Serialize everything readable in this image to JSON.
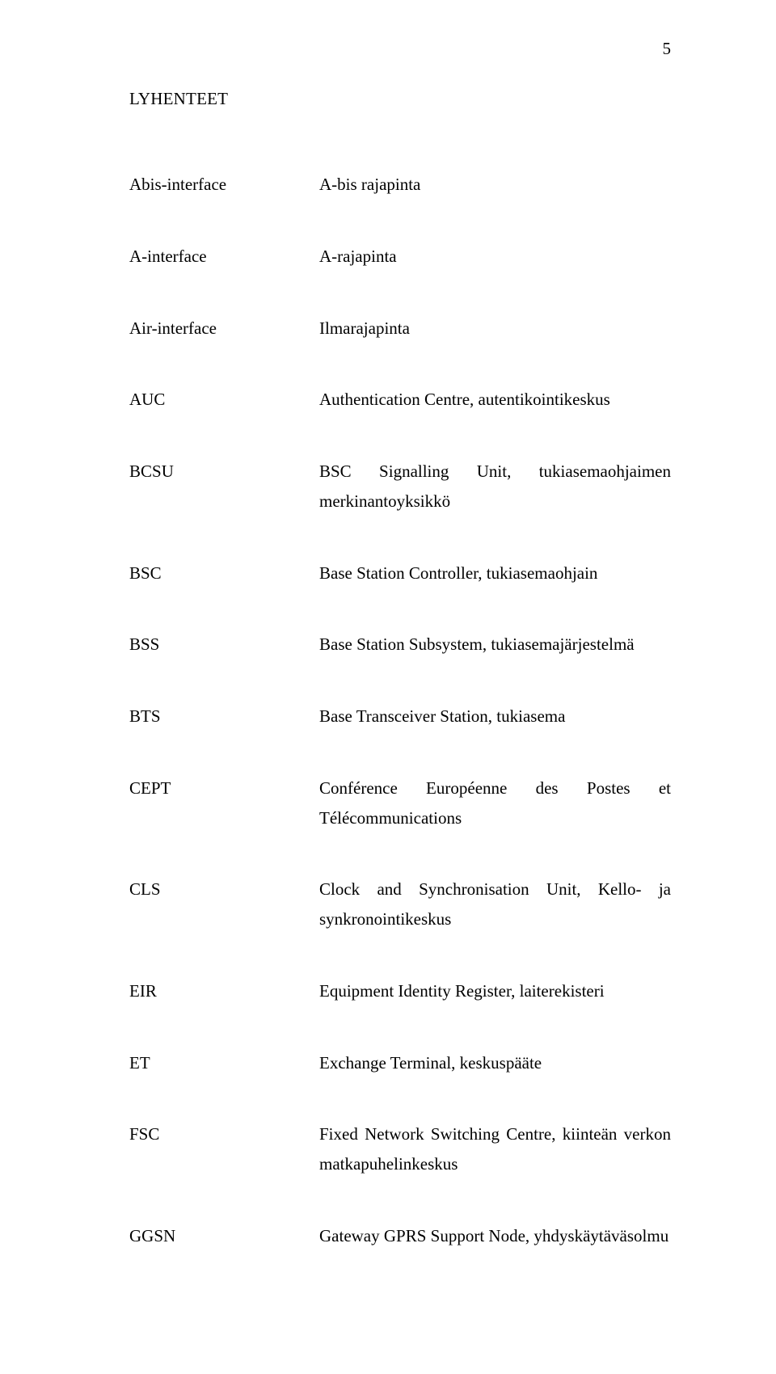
{
  "page_number": "5",
  "heading": "LYHENTEET",
  "entries": [
    {
      "term": "Abis-interface",
      "desc": "A-bis rajapinta"
    },
    {
      "term": "A-interface",
      "desc": "A-rajapinta"
    },
    {
      "term": "Air-interface",
      "desc": "Ilmarajapinta"
    },
    {
      "term": "AUC",
      "desc": "Authentication Centre, autentikointikeskus"
    },
    {
      "term": "BCSU",
      "desc": "BSC Signalling Unit, tukiasemaohjaimen merkinantoyksikkö"
    },
    {
      "term": "BSC",
      "desc": "Base Station Controller, tukiasemaohjain"
    },
    {
      "term": "BSS",
      "desc": "Base Station Subsystem, tukiasemajärjestelmä"
    },
    {
      "term": "BTS",
      "desc": "Base Transceiver Station, tukiasema"
    },
    {
      "term": "CEPT",
      "desc": "Conférence Européenne des Postes et Télécommunications"
    },
    {
      "term": "CLS",
      "desc": "Clock and Synchronisation Unit, Kello- ja synkronointikeskus"
    },
    {
      "term": "EIR",
      "desc": "Equipment Identity Register, laiterekisteri"
    },
    {
      "term": "ET",
      "desc": "Exchange Terminal, keskuspääte"
    },
    {
      "term": "FSC",
      "desc": "Fixed Network Switching Centre, kiinteän verkon matkapuhelinkeskus"
    },
    {
      "term": "GGSN",
      "desc": "Gateway GPRS Support Node, yhdyskäytäväsolmu"
    }
  ],
  "colors": {
    "background": "#ffffff",
    "text": "#000000"
  },
  "typography": {
    "font_family": "Times New Roman",
    "body_fontsize_pt": 16,
    "line_height": 1.75
  }
}
